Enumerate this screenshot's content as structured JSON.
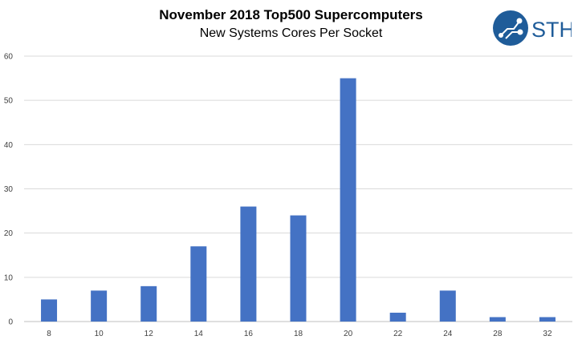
{
  "chart_data": {
    "type": "bar",
    "title": "November 2018 Top500 Supercomputers",
    "subtitle": "New Systems Cores Per Socket",
    "categories": [
      "8",
      "10",
      "12",
      "14",
      "16",
      "18",
      "20",
      "22",
      "24",
      "28",
      "32"
    ],
    "values": [
      5,
      7,
      8,
      17,
      26,
      24,
      55,
      2,
      7,
      1,
      1
    ],
    "ylim": [
      0,
      60
    ],
    "yticks": [
      0,
      10,
      20,
      30,
      40,
      50,
      60
    ],
    "xlabel": "",
    "ylabel": "",
    "grid": true,
    "bar_color": "#4472C4"
  },
  "logo": {
    "text": "STH",
    "color": "#1F5C99"
  }
}
